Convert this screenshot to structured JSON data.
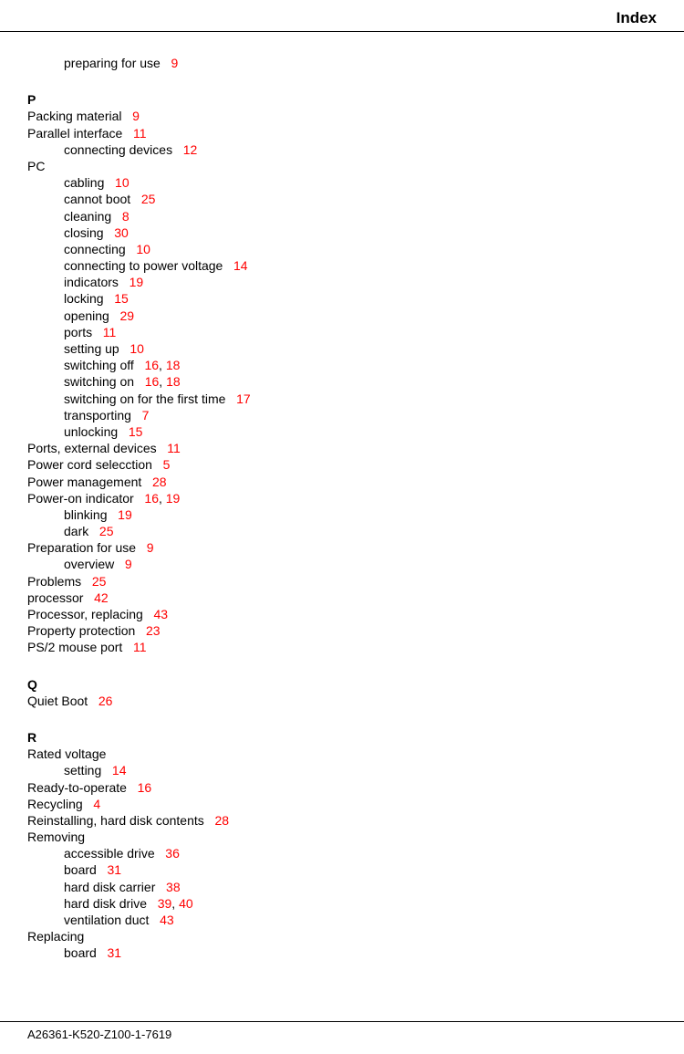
{
  "header": {
    "title": "Index"
  },
  "footer": {
    "docnum": "A26361-K520-Z100-1-7619"
  },
  "sections": [
    {
      "heading": null,
      "entries": [
        {
          "level": 1,
          "text": "preparing for use",
          "pages": [
            "9"
          ]
        }
      ]
    },
    {
      "heading": "P",
      "entries": [
        {
          "level": 0,
          "text": "Packing material",
          "pages": [
            "9"
          ]
        },
        {
          "level": 0,
          "text": "Parallel interface",
          "pages": [
            "11"
          ]
        },
        {
          "level": 1,
          "text": "connecting devices",
          "pages": [
            "12"
          ]
        },
        {
          "level": 0,
          "text": "PC",
          "pages": []
        },
        {
          "level": 1,
          "text": "cabling",
          "pages": [
            "10"
          ]
        },
        {
          "level": 1,
          "text": "cannot boot",
          "pages": [
            "25"
          ]
        },
        {
          "level": 1,
          "text": "cleaning",
          "pages": [
            "8"
          ]
        },
        {
          "level": 1,
          "text": "closing",
          "pages": [
            "30"
          ]
        },
        {
          "level": 1,
          "text": "connecting",
          "pages": [
            "10"
          ]
        },
        {
          "level": 1,
          "text": "connecting to power voltage",
          "pages": [
            "14"
          ]
        },
        {
          "level": 1,
          "text": "indicators",
          "pages": [
            "19"
          ]
        },
        {
          "level": 1,
          "text": "locking",
          "pages": [
            "15"
          ]
        },
        {
          "level": 1,
          "text": "opening",
          "pages": [
            "29"
          ]
        },
        {
          "level": 1,
          "text": "ports",
          "pages": [
            "11"
          ]
        },
        {
          "level": 1,
          "text": "setting up",
          "pages": [
            "10"
          ]
        },
        {
          "level": 1,
          "text": "switching off",
          "pages": [
            "16",
            "18"
          ]
        },
        {
          "level": 1,
          "text": "switching on",
          "pages": [
            "16",
            "18"
          ]
        },
        {
          "level": 1,
          "text": "switching on for the first time",
          "pages": [
            "17"
          ]
        },
        {
          "level": 1,
          "text": "transporting",
          "pages": [
            "7"
          ]
        },
        {
          "level": 1,
          "text": "unlocking",
          "pages": [
            "15"
          ]
        },
        {
          "level": 0,
          "text": "Ports, external devices",
          "pages": [
            "11"
          ]
        },
        {
          "level": 0,
          "text": "Power cord selecction",
          "pages": [
            "5"
          ]
        },
        {
          "level": 0,
          "text": "Power management",
          "pages": [
            "28"
          ]
        },
        {
          "level": 0,
          "text": "Power-on indicator",
          "pages": [
            "16",
            "19"
          ]
        },
        {
          "level": 1,
          "text": "blinking",
          "pages": [
            "19"
          ]
        },
        {
          "level": 1,
          "text": "dark",
          "pages": [
            "25"
          ]
        },
        {
          "level": 0,
          "text": "Preparation for use",
          "pages": [
            "9"
          ]
        },
        {
          "level": 1,
          "text": "overview",
          "pages": [
            "9"
          ]
        },
        {
          "level": 0,
          "text": "Problems",
          "pages": [
            "25"
          ]
        },
        {
          "level": 0,
          "text": "processor",
          "pages": [
            "42"
          ]
        },
        {
          "level": 0,
          "text": "Processor, replacing",
          "pages": [
            "43"
          ]
        },
        {
          "level": 0,
          "text": "Property protection",
          "pages": [
            "23"
          ]
        },
        {
          "level": 0,
          "text": "PS/2 mouse port",
          "pages": [
            "11"
          ]
        }
      ]
    },
    {
      "heading": "Q",
      "entries": [
        {
          "level": 0,
          "text": "Quiet Boot",
          "pages": [
            "26"
          ]
        }
      ]
    },
    {
      "heading": "R",
      "entries": [
        {
          "level": 0,
          "text": "Rated voltage",
          "pages": []
        },
        {
          "level": 1,
          "text": "setting",
          "pages": [
            "14"
          ]
        },
        {
          "level": 0,
          "text": "Ready-to-operate",
          "pages": [
            "16"
          ]
        },
        {
          "level": 0,
          "text": "Recycling",
          "pages": [
            "4"
          ]
        },
        {
          "level": 0,
          "text": "Reinstalling, hard disk contents",
          "pages": [
            "28"
          ]
        },
        {
          "level": 0,
          "text": "Removing",
          "pages": []
        },
        {
          "level": 1,
          "text": "accessible drive",
          "pages": [
            "36"
          ]
        },
        {
          "level": 1,
          "text": "board",
          "pages": [
            "31"
          ]
        },
        {
          "level": 1,
          "text": "hard disk carrier",
          "pages": [
            "38"
          ]
        },
        {
          "level": 1,
          "text": "hard disk drive",
          "pages": [
            "39",
            "40"
          ]
        },
        {
          "level": 1,
          "text": "ventilation duct",
          "pages": [
            "43"
          ]
        },
        {
          "level": 0,
          "text": "Replacing",
          "pages": []
        },
        {
          "level": 1,
          "text": "board",
          "pages": [
            "31"
          ]
        }
      ]
    }
  ]
}
